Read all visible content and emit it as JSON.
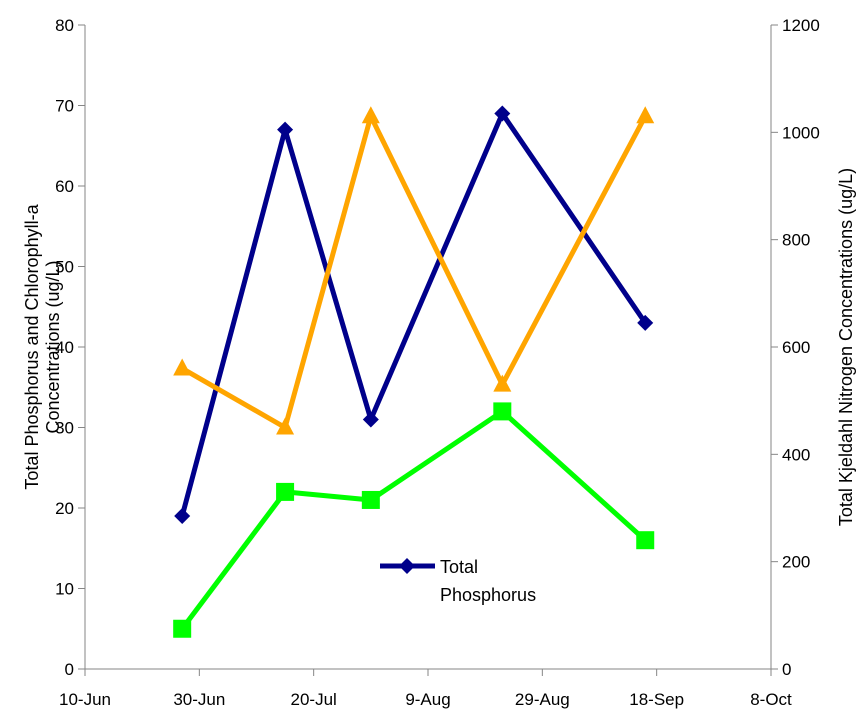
{
  "chart_data": {
    "type": "line",
    "title": "",
    "x_ticks": [
      "10-Jun",
      "30-Jun",
      "20-Jul",
      "9-Aug",
      "29-Aug",
      "18-Sep",
      "8-Oct"
    ],
    "x_tick_dates": [
      "2011-06-10",
      "2011-06-30",
      "2011-07-20",
      "2011-08-09",
      "2011-08-29",
      "2011-09-18",
      "2011-10-08"
    ],
    "y_left": {
      "label": "Total Phosphorus and Chlorophyll-a Concentrations (ug/L)",
      "range": [
        0,
        80
      ],
      "ticks": [
        "0",
        "10",
        "20",
        "30",
        "40",
        "50",
        "60",
        "70",
        "80"
      ]
    },
    "y_right": {
      "label": "Total Kjeldahl Nitrogen Concentrations (ug/L)",
      "range": [
        0,
        1200
      ],
      "ticks": [
        "0",
        "200",
        "400",
        "600",
        "800",
        "1000",
        "1200"
      ]
    },
    "grid": false,
    "legend": {
      "placement": "bottom-center",
      "entries": [
        "Total Phosphorus"
      ]
    },
    "series": [
      {
        "name": "Total Phosphorus",
        "axis": "left",
        "color": "#00008B",
        "marker": "diamond",
        "x": [
          "2011-06-27",
          "2011-07-15",
          "2011-07-30",
          "2011-08-22",
          "2011-09-16"
        ],
        "y": [
          19,
          67,
          31,
          69,
          43
        ]
      },
      {
        "axis": "left",
        "color": "#00FF00",
        "marker": "square",
        "x": [
          "2011-06-27",
          "2011-07-15",
          "2011-07-30",
          "2011-08-22",
          "2011-09-16"
        ],
        "y": [
          5,
          22,
          21,
          32,
          16
        ]
      },
      {
        "axis": "right",
        "color": "#FFA500",
        "marker": "triangle",
        "x": [
          "2011-06-27",
          "2011-07-15",
          "2011-07-30",
          "2011-08-22",
          "2011-09-16"
        ],
        "y": [
          560,
          450,
          1030,
          530,
          1030
        ]
      }
    ]
  }
}
